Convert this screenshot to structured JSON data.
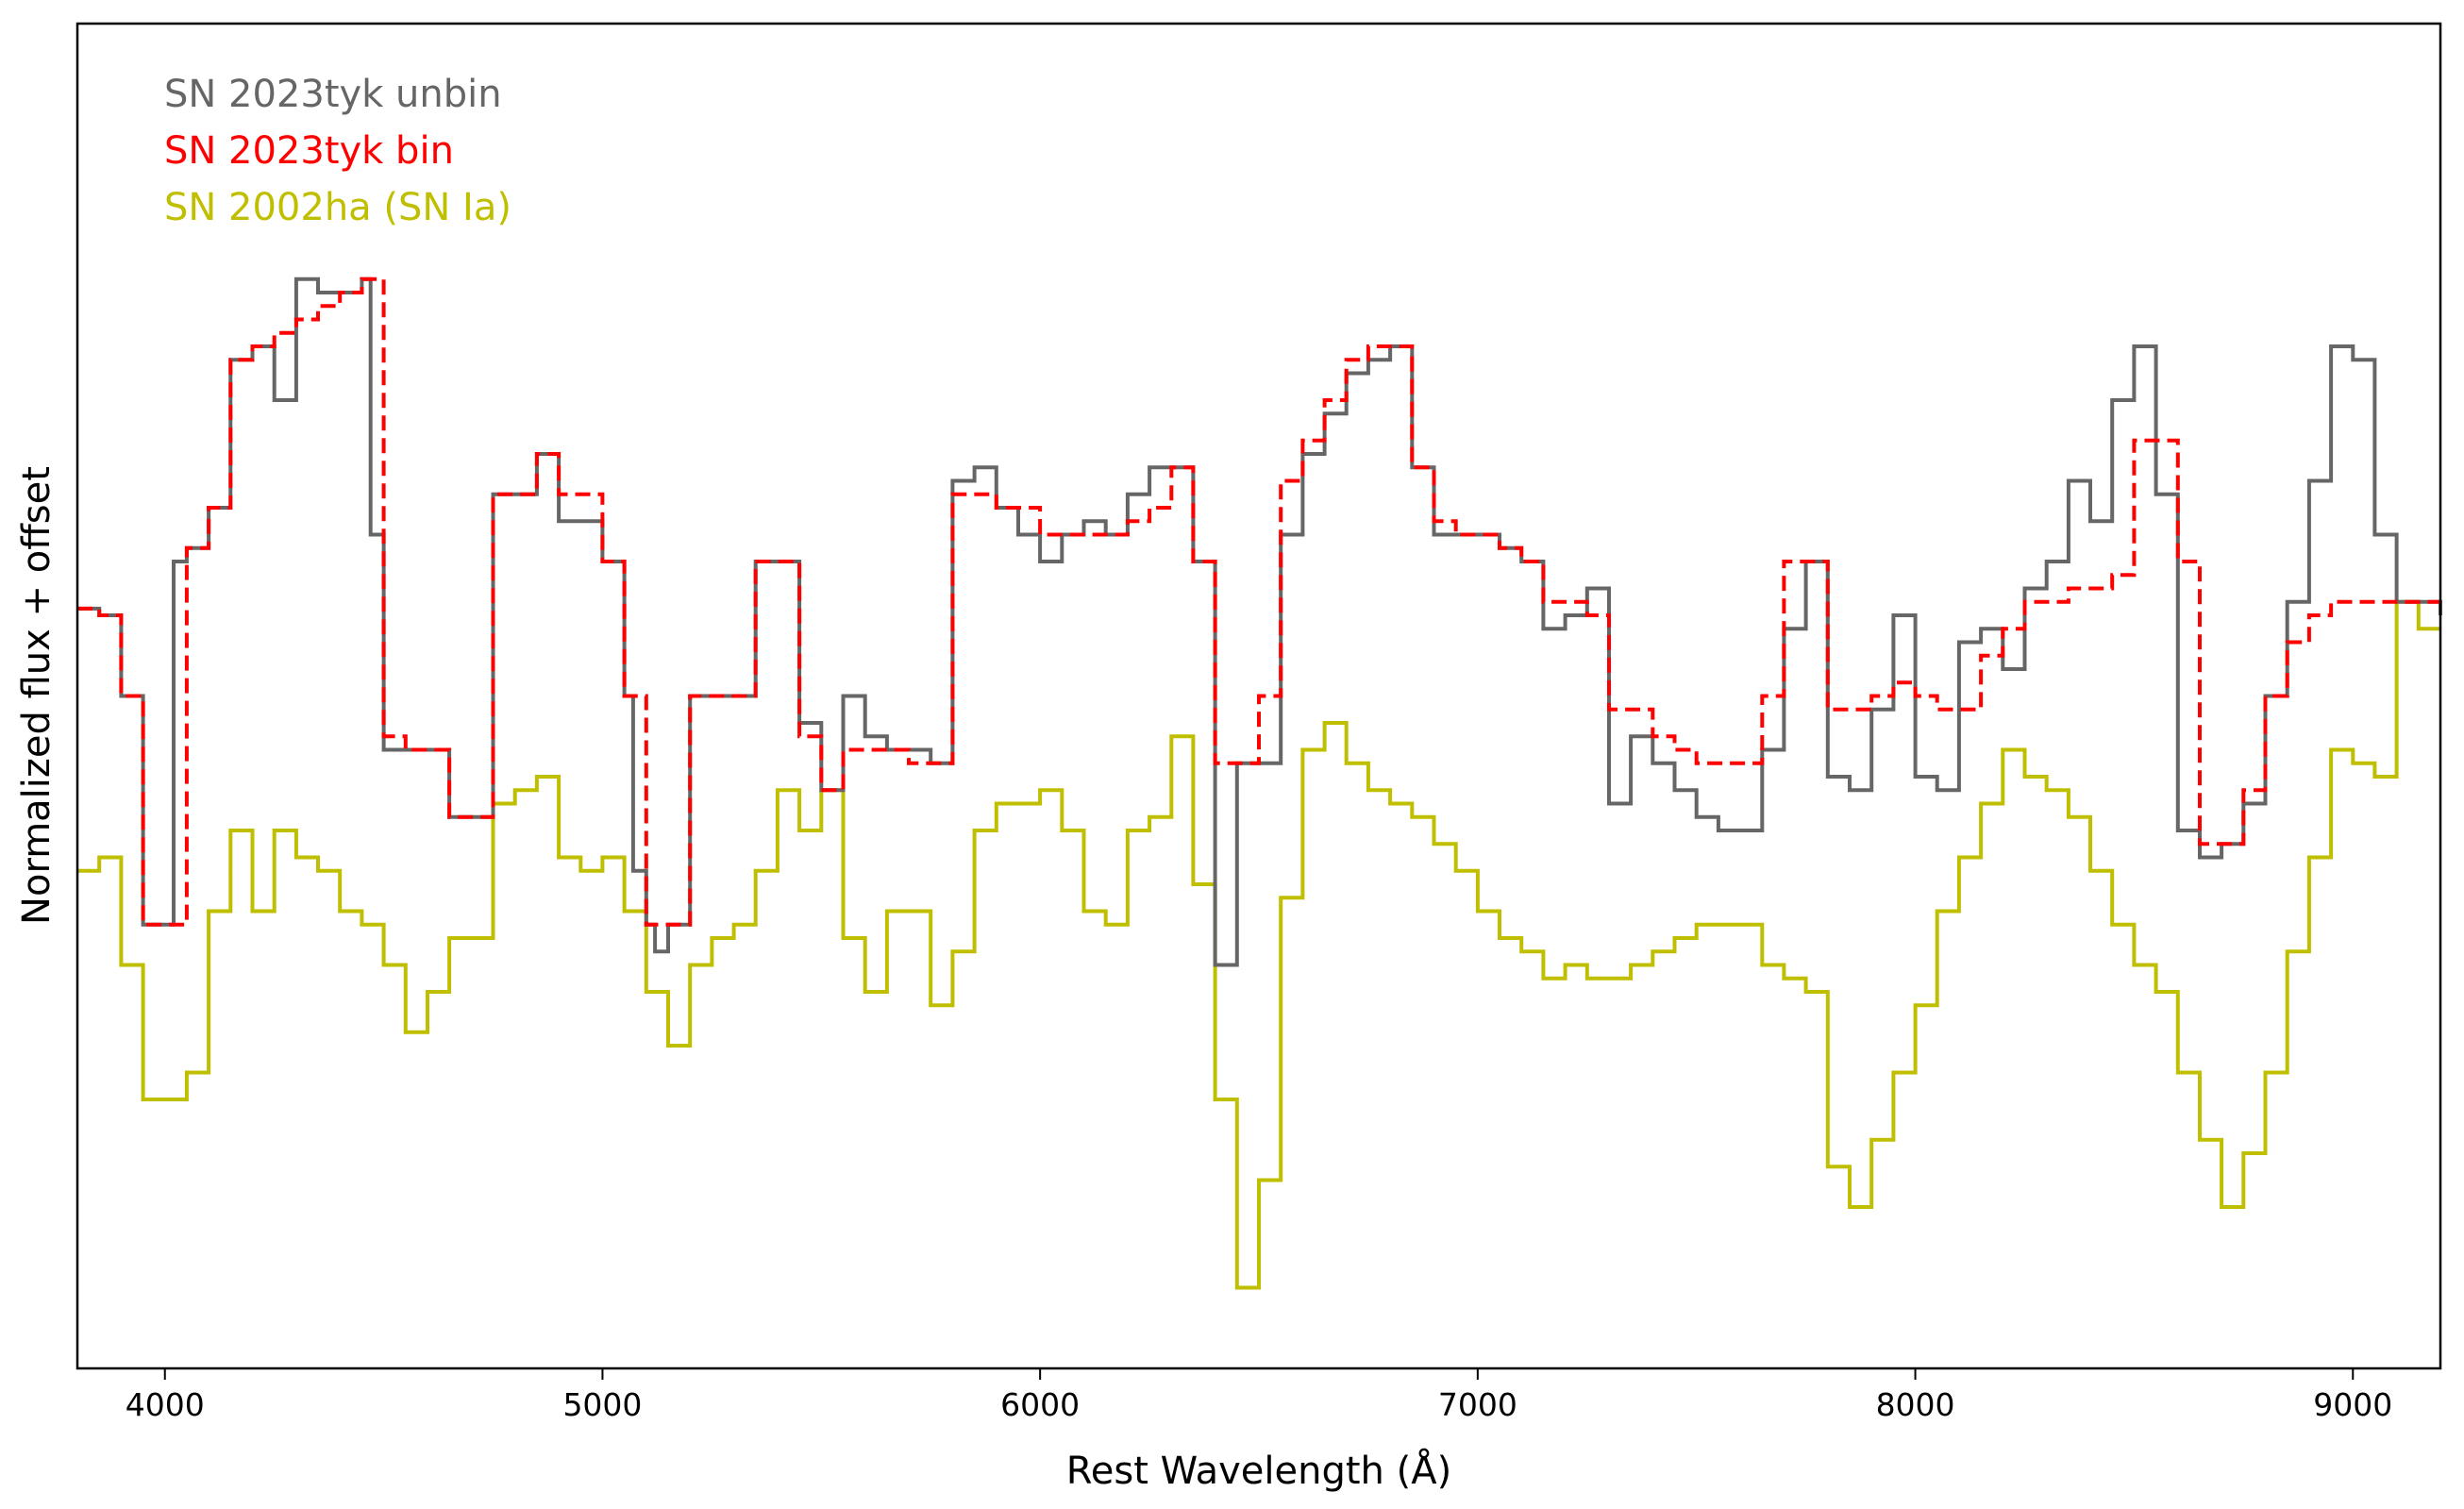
{
  "chart_data": {
    "type": "line",
    "xlabel": "Rest Wavelength (Å)",
    "ylabel": "Normalized flux + offset",
    "xlim": [
      3800,
      9200
    ],
    "ylim": [
      0,
      1
    ],
    "x_ticks": [
      4000,
      5000,
      6000,
      7000,
      8000,
      9000
    ],
    "y_ticks_shown": false,
    "grid": false,
    "legend_position": "top-left",
    "series": [
      {
        "name": "SN 2023tyk unbin",
        "color": "#666666",
        "style": "solid-step",
        "x": [
          3800,
          3850,
          3900,
          3950,
          4000,
          4020,
          4050,
          4070,
          4100,
          4150,
          4200,
          4250,
          4300,
          4350,
          4400,
          4450,
          4470,
          4500,
          4550,
          4600,
          4650,
          4700,
          4750,
          4800,
          4850,
          4900,
          4950,
          5000,
          5050,
          5070,
          5100,
          5120,
          5150,
          5200,
          5250,
          5300,
          5350,
          5400,
          5450,
          5500,
          5550,
          5600,
          5650,
          5700,
          5750,
          5800,
          5850,
          5900,
          5950,
          6000,
          6050,
          6100,
          6150,
          6200,
          6250,
          6300,
          6350,
          6400,
          6450,
          6500,
          6550,
          6600,
          6650,
          6700,
          6750,
          6800,
          6850,
          6900,
          6950,
          7000,
          7050,
          7100,
          7150,
          7200,
          7250,
          7300,
          7350,
          7400,
          7450,
          7500,
          7550,
          7600,
          7650,
          7700,
          7750,
          7800,
          7850,
          7900,
          7950,
          8000,
          8050,
          8100,
          8150,
          8200,
          8250,
          8300,
          8350,
          8400,
          8450,
          8500,
          8550,
          8600,
          8650,
          8700,
          8750,
          8800,
          8850,
          8900,
          8950,
          9000,
          9050,
          9100,
          9150,
          9200
        ],
        "y": [
          0.565,
          0.56,
          0.5,
          0.33,
          0.33,
          0.6,
          0.61,
          0.61,
          0.64,
          0.75,
          0.76,
          0.72,
          0.81,
          0.8,
          0.8,
          0.81,
          0.62,
          0.46,
          0.46,
          0.46,
          0.41,
          0.41,
          0.65,
          0.65,
          0.68,
          0.63,
          0.63,
          0.6,
          0.5,
          0.37,
          0.33,
          0.31,
          0.33,
          0.5,
          0.5,
          0.5,
          0.6,
          0.6,
          0.48,
          0.43,
          0.5,
          0.47,
          0.46,
          0.46,
          0.45,
          0.66,
          0.67,
          0.64,
          0.62,
          0.6,
          0.62,
          0.63,
          0.62,
          0.65,
          0.67,
          0.67,
          0.6,
          0.3,
          0.45,
          0.45,
          0.62,
          0.68,
          0.71,
          0.74,
          0.75,
          0.76,
          0.67,
          0.62,
          0.62,
          0.62,
          0.61,
          0.6,
          0.55,
          0.56,
          0.58,
          0.42,
          0.47,
          0.45,
          0.43,
          0.41,
          0.4,
          0.4,
          0.46,
          0.55,
          0.6,
          0.44,
          0.43,
          0.49,
          0.56,
          0.44,
          0.43,
          0.54,
          0.55,
          0.52,
          0.58,
          0.6,
          0.66,
          0.63,
          0.72,
          0.76,
          0.65,
          0.4,
          0.38,
          0.39,
          0.42,
          0.5,
          0.57,
          0.66,
          0.76,
          0.75,
          0.62,
          0.57,
          0.57,
          0.56
        ]
      },
      {
        "name": "SN 2023tyk bin",
        "color": "#ff0000",
        "style": "dashed-step",
        "x": [
          3800,
          3850,
          3900,
          3950,
          4000,
          4050,
          4100,
          4150,
          4200,
          4250,
          4300,
          4350,
          4400,
          4450,
          4500,
          4550,
          4600,
          4650,
          4700,
          4750,
          4800,
          4850,
          4900,
          4950,
          5000,
          5050,
          5100,
          5150,
          5200,
          5250,
          5300,
          5350,
          5400,
          5450,
          5500,
          5550,
          5600,
          5650,
          5700,
          5750,
          5800,
          5850,
          5900,
          5950,
          6000,
          6050,
          6100,
          6150,
          6200,
          6250,
          6300,
          6350,
          6400,
          6450,
          6500,
          6550,
          6600,
          6650,
          6700,
          6750,
          6800,
          6850,
          6900,
          6950,
          7000,
          7050,
          7100,
          7150,
          7200,
          7250,
          7300,
          7350,
          7400,
          7450,
          7500,
          7550,
          7600,
          7650,
          7700,
          7750,
          7800,
          7850,
          7900,
          7950,
          8000,
          8050,
          8100,
          8150,
          8200,
          8250,
          8300,
          8350,
          8400,
          8450,
          8500,
          8550,
          8600,
          8650,
          8700,
          8750,
          8800,
          8850,
          8900,
          8950,
          9000,
          9050,
          9100,
          9150,
          9200
        ],
        "y": [
          0.565,
          0.56,
          0.5,
          0.33,
          0.33,
          0.61,
          0.64,
          0.75,
          0.76,
          0.77,
          0.78,
          0.79,
          0.8,
          0.81,
          0.47,
          0.46,
          0.46,
          0.41,
          0.41,
          0.65,
          0.65,
          0.68,
          0.65,
          0.65,
          0.6,
          0.5,
          0.33,
          0.33,
          0.5,
          0.5,
          0.5,
          0.6,
          0.6,
          0.47,
          0.43,
          0.46,
          0.46,
          0.46,
          0.45,
          0.45,
          0.65,
          0.65,
          0.64,
          0.64,
          0.62,
          0.62,
          0.62,
          0.62,
          0.63,
          0.64,
          0.67,
          0.6,
          0.45,
          0.45,
          0.5,
          0.66,
          0.69,
          0.72,
          0.75,
          0.76,
          0.76,
          0.67,
          0.63,
          0.62,
          0.62,
          0.61,
          0.6,
          0.57,
          0.57,
          0.56,
          0.49,
          0.49,
          0.47,
          0.46,
          0.45,
          0.45,
          0.45,
          0.5,
          0.6,
          0.6,
          0.49,
          0.49,
          0.5,
          0.51,
          0.5,
          0.49,
          0.49,
          0.53,
          0.55,
          0.57,
          0.57,
          0.58,
          0.58,
          0.59,
          0.69,
          0.69,
          0.6,
          0.39,
          0.39,
          0.43,
          0.5,
          0.54,
          0.56,
          0.57,
          0.57,
          0.57,
          0.57,
          0.57,
          0.57
        ]
      },
      {
        "name": "SN 2002ha (SN Ia)",
        "color": "#bfbf00",
        "style": "solid-step",
        "x": [
          3800,
          3850,
          3900,
          3950,
          4000,
          4050,
          4100,
          4150,
          4200,
          4250,
          4300,
          4350,
          4400,
          4450,
          4500,
          4550,
          4600,
          4650,
          4700,
          4750,
          4800,
          4850,
          4900,
          4950,
          5000,
          5050,
          5100,
          5150,
          5200,
          5250,
          5300,
          5350,
          5400,
          5450,
          5500,
          5550,
          5600,
          5650,
          5700,
          5750,
          5800,
          5850,
          5900,
          5950,
          6000,
          6050,
          6100,
          6150,
          6200,
          6250,
          6300,
          6350,
          6400,
          6450,
          6500,
          6550,
          6600,
          6650,
          6700,
          6750,
          6800,
          6850,
          6900,
          6950,
          7000,
          7050,
          7100,
          7150,
          7200,
          7250,
          7300,
          7350,
          7400,
          7450,
          7500,
          7550,
          7600,
          7650,
          7700,
          7750,
          7800,
          7850,
          7900,
          7950,
          8000,
          8050,
          8100,
          8150,
          8200,
          8250,
          8300,
          8350,
          8400,
          8450,
          8500,
          8550,
          8600,
          8650,
          8700,
          8750,
          8800,
          8850,
          8900,
          8950,
          9000,
          9050,
          9100,
          9150,
          9200
        ],
        "y": [
          0.37,
          0.38,
          0.3,
          0.2,
          0.2,
          0.22,
          0.34,
          0.4,
          0.34,
          0.4,
          0.38,
          0.37,
          0.34,
          0.33,
          0.3,
          0.25,
          0.28,
          0.32,
          0.32,
          0.42,
          0.43,
          0.44,
          0.38,
          0.37,
          0.38,
          0.34,
          0.28,
          0.24,
          0.3,
          0.32,
          0.33,
          0.37,
          0.43,
          0.4,
          0.43,
          0.32,
          0.28,
          0.34,
          0.34,
          0.27,
          0.31,
          0.4,
          0.42,
          0.42,
          0.43,
          0.4,
          0.34,
          0.33,
          0.4,
          0.41,
          0.47,
          0.36,
          0.2,
          0.06,
          0.14,
          0.35,
          0.46,
          0.48,
          0.45,
          0.43,
          0.42,
          0.41,
          0.39,
          0.37,
          0.34,
          0.32,
          0.31,
          0.29,
          0.3,
          0.29,
          0.29,
          0.3,
          0.31,
          0.32,
          0.33,
          0.33,
          0.33,
          0.3,
          0.29,
          0.28,
          0.15,
          0.12,
          0.17,
          0.22,
          0.27,
          0.34,
          0.38,
          0.42,
          0.46,
          0.44,
          0.43,
          0.41,
          0.37,
          0.33,
          0.3,
          0.28,
          0.22,
          0.17,
          0.12,
          0.16,
          0.22,
          0.31,
          0.38,
          0.46,
          0.45,
          0.44,
          0.57,
          0.55,
          0.55
        ]
      }
    ]
  }
}
